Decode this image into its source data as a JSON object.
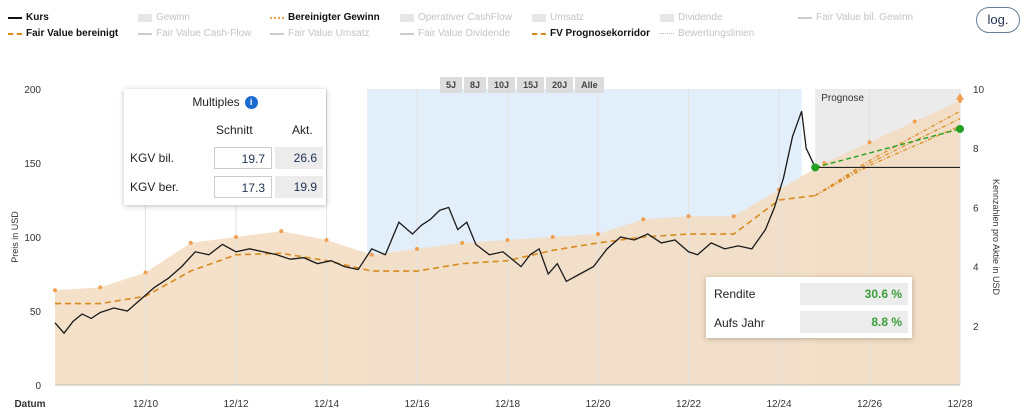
{
  "legend": [
    {
      "label": "Kurs",
      "active": true,
      "style": "solid",
      "color": "#111111"
    },
    {
      "label": "Gewinn",
      "active": false,
      "style": "area",
      "color": "#cccccc"
    },
    {
      "label": "Bereinigter Gewinn",
      "active": true,
      "style": "dot",
      "color": "#f0a050"
    },
    {
      "label": "Operativer CashFlow",
      "active": false,
      "style": "area",
      "color": "#cccccc"
    },
    {
      "label": "Umsatz",
      "active": false,
      "style": "area",
      "color": "#cccccc"
    },
    {
      "label": "Dividende",
      "active": false,
      "style": "area",
      "color": "#cccccc"
    },
    {
      "label": "Fair Value bil. Gewinn",
      "active": false,
      "style": "line",
      "color": "#cccccc"
    },
    {
      "label": "Fair Value bereinigt",
      "active": true,
      "style": "dashed",
      "color": "#d98a1c"
    },
    {
      "label": "Fair Value Cash-Flow",
      "active": false,
      "style": "line",
      "color": "#cccccc"
    },
    {
      "label": "Fair Value Umsatz",
      "active": false,
      "style": "line",
      "color": "#cccccc"
    },
    {
      "label": "Fair Value Dividende",
      "active": false,
      "style": "line",
      "color": "#cccccc"
    },
    {
      "label": "FV Prognosekorridor",
      "active": true,
      "style": "dashed-dot",
      "color": "#d98a1c"
    },
    {
      "label": "Bewertungslinien",
      "active": false,
      "style": "dotted",
      "color": "#cccccc"
    }
  ],
  "scale_button": "log.",
  "range_buttons": [
    "5J",
    "8J",
    "10J",
    "15J",
    "20J",
    "Alle"
  ],
  "prognose_label": "Prognose",
  "multiples": {
    "title": "Multiples",
    "col_avg": "Schnitt",
    "col_cur": "Akt.",
    "rows": [
      {
        "label": "KGV bil.",
        "avg": "19.7",
        "cur": "26.6"
      },
      {
        "label": "KGV ber.",
        "avg": "17.3",
        "cur": "19.9"
      }
    ]
  },
  "returns": {
    "rows": [
      {
        "label": "Rendite",
        "value": "30.6 %"
      },
      {
        "label": "Aufs Jahr",
        "value": "8.8 %"
      }
    ]
  },
  "colors": {
    "price": "#1a1a1a",
    "fair_value": "#d98a1c",
    "area": "#f3dcc0",
    "highlight": "#e3eefb",
    "forecast_bg": "#ebebeb",
    "green": "#22a022"
  },
  "chart_data": {
    "type": "line",
    "xlabel": "Datum",
    "ylabel": "Preis in USD",
    "y2label": "Kennzahlen pro Aktie in USD",
    "ylim": [
      0,
      200
    ],
    "y2lim": [
      0,
      10
    ],
    "xlim": [
      2008.0,
      2028.0
    ],
    "x_ticks": [
      "12/10",
      "12/12",
      "12/14",
      "12/16",
      "12/18",
      "12/20",
      "12/22",
      "12/24",
      "12/26",
      "12/28"
    ],
    "y_ticks": [
      0,
      50,
      100,
      150,
      200
    ],
    "y2_ticks": [
      2,
      4,
      6,
      8,
      10
    ],
    "grid": "vertical",
    "highlight_range": [
      2014.9,
      2024.5
    ],
    "forecast_start": 2024.8,
    "series": [
      {
        "name": "Kurs",
        "axis": "left",
        "x": [
          2008.0,
          2008.2,
          2008.4,
          2008.6,
          2008.8,
          2009.0,
          2009.3,
          2009.6,
          2009.9,
          2010.2,
          2010.5,
          2010.8,
          2011.1,
          2011.4,
          2011.7,
          2012.0,
          2012.3,
          2012.6,
          2012.9,
          2013.2,
          2013.5,
          2013.8,
          2014.1,
          2014.4,
          2014.7,
          2015.0,
          2015.3,
          2015.6,
          2015.9,
          2016.1,
          2016.3,
          2016.5,
          2016.7,
          2016.9,
          2017.1,
          2017.3,
          2017.6,
          2017.9,
          2018.1,
          2018.3,
          2018.5,
          2018.7,
          2018.9,
          2019.1,
          2019.3,
          2019.6,
          2019.9,
          2020.2,
          2020.5,
          2020.8,
          2021.1,
          2021.4,
          2021.7,
          2022.0,
          2022.2,
          2022.5,
          2022.8,
          2023.1,
          2023.4,
          2023.7,
          2023.9,
          2024.1,
          2024.3,
          2024.5,
          2024.6,
          2024.8
        ],
        "y": [
          42,
          35,
          43,
          48,
          45,
          49,
          52,
          50,
          58,
          66,
          72,
          80,
          90,
          88,
          95,
          90,
          92,
          90,
          88,
          85,
          86,
          82,
          84,
          80,
          78,
          92,
          88,
          110,
          102,
          108,
          112,
          118,
          120,
          105,
          110,
          95,
          88,
          90,
          85,
          80,
          88,
          92,
          75,
          82,
          70,
          75,
          80,
          92,
          100,
          98,
          102,
          96,
          98,
          90,
          88,
          96,
          92,
          94,
          92,
          105,
          120,
          140,
          168,
          185,
          160,
          147
        ]
      },
      {
        "name": "Fair Value bereinigt",
        "axis": "left",
        "x": [
          2008.0,
          2009.0,
          2010.0,
          2011.0,
          2012.0,
          2013.0,
          2014.0,
          2015.0,
          2016.0,
          2017.0,
          2018.0,
          2019.0,
          2020.0,
          2021.0,
          2022.0,
          2023.0,
          2024.0,
          2024.8
        ],
        "y": [
          55,
          55,
          60,
          77,
          88,
          89,
          84,
          77,
          77,
          82,
          84,
          91,
          96,
          100,
          102,
          102,
          125,
          128
        ]
      },
      {
        "name": "Bereinigter Gewinn",
        "axis": "right",
        "x": [
          2008.0,
          2009.0,
          2010.0,
          2011.0,
          2012.0,
          2013.0,
          2014.0,
          2015.0,
          2016.0,
          2017.0,
          2018.0,
          2019.0,
          2020.0,
          2021.0,
          2022.0,
          2023.0,
          2024.0,
          2025.0,
          2026.0,
          2027.0,
          2028.0
        ],
        "y": [
          3.2,
          3.3,
          3.8,
          4.8,
          5.0,
          5.2,
          4.9,
          4.4,
          4.6,
          4.8,
          4.9,
          5.0,
          5.1,
          5.6,
          5.7,
          5.7,
          6.6,
          7.5,
          8.2,
          8.9,
          9.6
        ]
      },
      {
        "name": "FV Prognosekorridor",
        "axis": "left",
        "x": [
          2024.8,
          2026.0,
          2027.0,
          2028.0
        ],
        "y": [
          128,
          150,
          165,
          180
        ]
      }
    ]
  }
}
